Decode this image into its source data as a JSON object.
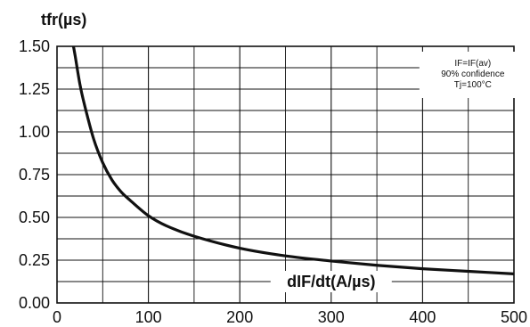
{
  "chart_data": {
    "type": "line",
    "title": "",
    "ylabel": "tfr(µs)",
    "xlabel": "dIF/dt(A/µs)",
    "xlim": [
      0,
      500
    ],
    "ylim": [
      0,
      1.5
    ],
    "x_ticks": [
      0,
      100,
      200,
      300,
      400,
      500
    ],
    "x_tick_labels": [
      "0",
      "100",
      "200",
      "300",
      "400",
      "500"
    ],
    "y_ticks": [
      0,
      0.25,
      0.5,
      0.75,
      1.0,
      1.25,
      1.5
    ],
    "y_tick_labels": [
      "0.00",
      "0.25",
      "0.50",
      "0.75",
      "1.00",
      "1.25",
      "1.50"
    ],
    "grid": true,
    "x_minor_grid_step": 50,
    "y_minor_grid_step": 0.125,
    "legend": {
      "position": "top-right",
      "lines": [
        "IF=IF(av)",
        "90% confidence",
        "Tj=100°C"
      ]
    },
    "series": [
      {
        "x": [
          18,
          20,
          25,
          30,
          40,
          50,
          60,
          70,
          80,
          100,
          120,
          150,
          200,
          250,
          300,
          350,
          400,
          450,
          500
        ],
        "y": [
          1.5,
          1.44,
          1.28,
          1.16,
          0.96,
          0.82,
          0.72,
          0.65,
          0.6,
          0.51,
          0.45,
          0.39,
          0.32,
          0.275,
          0.245,
          0.22,
          0.2,
          0.185,
          0.17
        ]
      }
    ]
  }
}
